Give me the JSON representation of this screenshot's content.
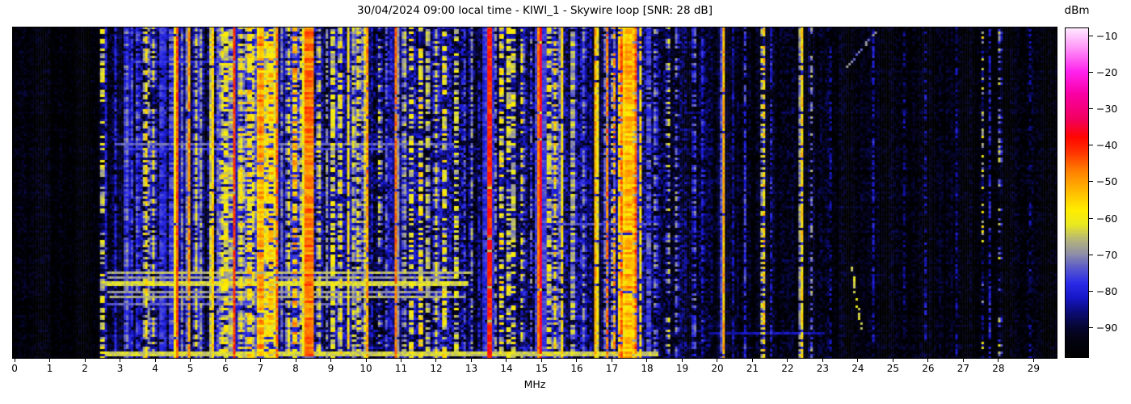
{
  "chart_data": {
    "type": "heatmap",
    "subtype": "radio-spectrogram-waterfall",
    "title": "30/04/2024 09:00 local time - KIWI_1 - Skywire loop [SNR: 28 dB]",
    "xlabel": "MHz",
    "x_range": [
      -0.07,
      29.68
    ],
    "x_ticks": [
      0,
      1,
      2,
      3,
      4,
      5,
      6,
      7,
      8,
      9,
      10,
      11,
      12,
      13,
      14,
      15,
      16,
      17,
      18,
      19,
      20,
      21,
      22,
      23,
      24,
      25,
      26,
      27,
      28,
      29
    ],
    "colorbar": {
      "label": "dBm",
      "ticks": [
        -10,
        -20,
        -30,
        -40,
        -50,
        -60,
        -70,
        -80,
        -90
      ],
      "vmin": -98,
      "vmax": -8,
      "stops": [
        [
          0.0,
          "#000000"
        ],
        [
          0.056,
          "#030314"
        ],
        [
          0.089,
          "#060632"
        ],
        [
          0.133,
          "#0b0b74"
        ],
        [
          0.178,
          "#1616c8"
        ],
        [
          0.222,
          "#2a2ae8"
        ],
        [
          0.267,
          "#5858cc"
        ],
        [
          0.311,
          "#8e8ea8"
        ],
        [
          0.356,
          "#b6b678"
        ],
        [
          0.4,
          "#e8e822"
        ],
        [
          0.444,
          "#ffee00"
        ],
        [
          0.511,
          "#ffb200"
        ],
        [
          0.567,
          "#ff7c00"
        ],
        [
          0.622,
          "#ff3200"
        ],
        [
          0.667,
          "#ff0600"
        ],
        [
          0.722,
          "#f2005e"
        ],
        [
          0.8,
          "#f900a6"
        ],
        [
          0.867,
          "#ff22ee"
        ],
        [
          0.944,
          "#ff9cf8"
        ],
        [
          1.0,
          "#ffeaff"
        ]
      ]
    },
    "noise_bands": [
      [
        0.0,
        2.45,
        -95.5,
        5.0
      ],
      [
        2.45,
        3.1,
        -92.0,
        7.0
      ],
      [
        3.1,
        5.5,
        -89.0,
        9.0
      ],
      [
        5.5,
        9.6,
        -86.5,
        10.0
      ],
      [
        9.6,
        12.6,
        -87.5,
        10.0
      ],
      [
        12.6,
        16.2,
        -88.5,
        9.5
      ],
      [
        16.2,
        18.5,
        -89.0,
        9.0
      ],
      [
        18.5,
        19.9,
        -91.5,
        8.0
      ],
      [
        19.9,
        23.2,
        -93.5,
        6.5
      ],
      [
        23.2,
        29.75,
        -94.5,
        5.5
      ]
    ],
    "signals": [
      [
        2.5,
        0.03,
        -62,
        0.55,
        6
      ],
      [
        2.62,
        0.03,
        -80,
        0.8,
        4
      ],
      [
        2.88,
        0.04,
        -80,
        0.85,
        4
      ],
      [
        3.2,
        0.05,
        -74,
        0.9,
        6
      ],
      [
        3.33,
        0.04,
        -77,
        0.9,
        5
      ],
      [
        3.5,
        0.04,
        -76,
        0.8,
        6
      ],
      [
        3.72,
        0.025,
        -58,
        0.6,
        6
      ],
      [
        3.82,
        0.03,
        -70,
        0.7,
        6
      ],
      [
        3.95,
        0.04,
        -63,
        0.5,
        7
      ],
      [
        4.18,
        0.04,
        -77,
        0.9,
        4
      ],
      [
        4.3,
        0.03,
        -80,
        0.9,
        4
      ],
      [
        4.46,
        0.04,
        -76,
        0.85,
        5
      ],
      [
        4.6,
        0.022,
        -44,
        0.97,
        3
      ],
      [
        4.78,
        0.03,
        -72,
        0.8,
        6
      ],
      [
        4.95,
        0.025,
        -50,
        0.9,
        5
      ],
      [
        5.17,
        0.04,
        -64,
        0.7,
        6
      ],
      [
        5.3,
        0.04,
        -70,
        0.8,
        6
      ],
      [
        5.62,
        0.03,
        -55,
        0.95,
        4
      ],
      [
        5.8,
        0.04,
        -74,
        0.9,
        5
      ],
      [
        5.9,
        0.04,
        -63,
        0.7,
        6
      ],
      [
        6.02,
        0.05,
        -61,
        0.75,
        6
      ],
      [
        6.17,
        0.05,
        -66,
        0.8,
        6
      ],
      [
        6.25,
        0.022,
        -42,
        0.97,
        3
      ],
      [
        6.45,
        0.05,
        -60,
        0.8,
        7
      ],
      [
        6.67,
        0.05,
        -56,
        0.7,
        7
      ],
      [
        6.8,
        0.04,
        -62,
        0.7,
        6
      ],
      [
        7.0,
        0.06,
        -50,
        0.9,
        6
      ],
      [
        7.18,
        0.04,
        -58,
        0.75,
        6
      ],
      [
        7.3,
        0.05,
        -56,
        0.8,
        7
      ],
      [
        7.44,
        0.022,
        -46,
        0.9,
        4
      ],
      [
        7.62,
        0.03,
        -72,
        0.8,
        5
      ],
      [
        7.8,
        0.04,
        -62,
        0.6,
        7
      ],
      [
        7.98,
        0.05,
        -54,
        0.65,
        8
      ],
      [
        8.15,
        0.04,
        -64,
        0.7,
        6
      ],
      [
        8.38,
        0.1,
        -47,
        0.98,
        5
      ],
      [
        8.67,
        0.04,
        -62,
        0.6,
        6
      ],
      [
        8.9,
        0.03,
        -70,
        0.7,
        5
      ],
      [
        9.05,
        0.04,
        -63,
        0.7,
        6
      ],
      [
        9.28,
        0.04,
        -60,
        0.6,
        7
      ],
      [
        9.5,
        0.03,
        -58,
        0.8,
        6
      ],
      [
        9.65,
        0.04,
        -66,
        0.7,
        6
      ],
      [
        9.78,
        0.04,
        -62,
        0.65,
        7
      ],
      [
        9.95,
        0.03,
        -60,
        0.7,
        6
      ],
      [
        10.02,
        0.025,
        -50,
        0.9,
        5
      ],
      [
        10.4,
        0.03,
        -66,
        0.5,
        7
      ],
      [
        10.6,
        0.03,
        -74,
        0.7,
        5
      ],
      [
        10.87,
        0.022,
        -46,
        0.95,
        3
      ],
      [
        11.1,
        0.04,
        -68,
        0.6,
        6
      ],
      [
        11.3,
        0.04,
        -60,
        0.55,
        7
      ],
      [
        11.55,
        0.04,
        -58,
        0.6,
        7
      ],
      [
        11.75,
        0.04,
        -66,
        0.7,
        6
      ],
      [
        12.0,
        0.04,
        -62,
        0.6,
        7
      ],
      [
        12.23,
        0.035,
        -60,
        0.55,
        7
      ],
      [
        12.57,
        0.035,
        -64,
        0.5,
        7
      ],
      [
        12.8,
        0.03,
        -76,
        0.7,
        5
      ],
      [
        13.0,
        0.03,
        -70,
        0.6,
        6
      ],
      [
        13.52,
        0.035,
        -40,
        0.98,
        4
      ],
      [
        13.7,
        0.03,
        -72,
        0.6,
        6
      ],
      [
        13.85,
        0.035,
        -60,
        0.5,
        8
      ],
      [
        14.05,
        0.04,
        -62,
        0.6,
        7
      ],
      [
        14.2,
        0.04,
        -64,
        0.55,
        7
      ],
      [
        14.45,
        0.03,
        -62,
        0.5,
        7
      ],
      [
        14.7,
        0.03,
        -74,
        0.6,
        5
      ],
      [
        14.95,
        0.028,
        -36,
        0.97,
        3
      ],
      [
        15.2,
        0.04,
        -62,
        0.6,
        7
      ],
      [
        15.38,
        0.04,
        -58,
        0.65,
        7
      ],
      [
        15.56,
        0.025,
        -57,
        0.9,
        4
      ],
      [
        15.9,
        0.05,
        -68,
        0.85,
        8
      ],
      [
        16.2,
        0.04,
        -72,
        0.7,
        6
      ],
      [
        16.56,
        0.025,
        -52,
        0.95,
        4
      ],
      [
        16.85,
        0.022,
        -47,
        0.8,
        5
      ],
      [
        17.05,
        0.025,
        -50,
        0.55,
        6
      ],
      [
        17.25,
        0.03,
        -46,
        0.85,
        5
      ],
      [
        17.45,
        0.09,
        -52,
        0.95,
        6
      ],
      [
        17.65,
        0.028,
        -45,
        0.9,
        5
      ],
      [
        17.8,
        0.025,
        -57,
        0.8,
        5
      ],
      [
        18.05,
        0.04,
        -76,
        0.8,
        5
      ],
      [
        18.25,
        0.03,
        -72,
        0.6,
        6
      ],
      [
        18.6,
        0.03,
        -66,
        0.3,
        8
      ],
      [
        18.85,
        0.03,
        -72,
        0.5,
        6
      ],
      [
        19.35,
        0.04,
        -76,
        0.6,
        6
      ],
      [
        19.6,
        0.03,
        -80,
        0.6,
        5
      ],
      [
        20.16,
        0.022,
        -52,
        0.97,
        4
      ],
      [
        20.45,
        0.02,
        -84,
        0.7,
        4
      ],
      [
        20.8,
        0.025,
        -78,
        0.75,
        5
      ],
      [
        21.3,
        0.025,
        -57,
        0.6,
        8
      ],
      [
        21.5,
        0.02,
        -80,
        0.6,
        5
      ],
      [
        22.38,
        0.022,
        -57,
        0.85,
        5
      ],
      [
        22.65,
        0.02,
        -72,
        0.5,
        6
      ],
      [
        23.2,
        0.02,
        -84,
        0.5,
        5
      ],
      [
        24.42,
        0.02,
        -82,
        0.6,
        5
      ],
      [
        25.3,
        0.02,
        -86,
        0.5,
        4
      ],
      [
        25.9,
        0.02,
        -84,
        0.5,
        5
      ],
      [
        26.8,
        0.02,
        -85,
        0.5,
        5
      ],
      [
        27.55,
        0.025,
        -66,
        0.25,
        9
      ],
      [
        27.78,
        0.022,
        -80,
        0.6,
        5
      ],
      [
        28.05,
        0.025,
        -70,
        0.35,
        8
      ],
      [
        28.9,
        0.02,
        -86,
        0.5,
        5
      ]
    ],
    "events": [
      {
        "y": 0.1,
        "span": 1,
        "f0": 3.3,
        "f1": 7.5,
        "level": -78
      },
      {
        "y": 0.355,
        "span": 1,
        "f0": 2.8,
        "f1": 12.5,
        "level": -73
      },
      {
        "y": 0.368,
        "span": 1,
        "f0": 3.2,
        "f1": 10.5,
        "level": -77
      },
      {
        "y": 0.595,
        "span": 1,
        "f0": 15.4,
        "f1": 18.1,
        "level": -75
      },
      {
        "y": 0.745,
        "span": 1,
        "f0": 2.6,
        "f1": 13.0,
        "level": -66
      },
      {
        "y": 0.76,
        "span": 1,
        "f0": 2.6,
        "f1": 12.6,
        "level": -69
      },
      {
        "y": 0.775,
        "span": 2,
        "f0": 2.5,
        "f1": 12.9,
        "level": -63
      },
      {
        "y": 0.8,
        "span": 1,
        "f0": 2.6,
        "f1": 12.4,
        "level": -69
      },
      {
        "y": 0.815,
        "span": 1,
        "f0": 2.7,
        "f1": 12.8,
        "level": -67
      },
      {
        "y": 0.84,
        "span": 1,
        "f0": 2.6,
        "f1": 9.5,
        "level": -73
      },
      {
        "y": 0.93,
        "span": 1,
        "f0": 19.8,
        "f1": 23.0,
        "level": -83
      },
      {
        "y": 0.985,
        "span": 2,
        "f0": 2.5,
        "f1": 18.3,
        "level": -64
      }
    ],
    "chirps": [
      {
        "f0": 23.68,
        "y0": 0.12,
        "f1": 24.45,
        "y1": 0.015,
        "level": -71,
        "duty": 0.8
      },
      {
        "f0": 23.78,
        "y0": 0.72,
        "f1": 24.08,
        "y1": 0.93,
        "level": -63,
        "duty": 0.55
      }
    ],
    "render": {
      "cols": 440,
      "rows": 137,
      "seed": 7
    }
  }
}
